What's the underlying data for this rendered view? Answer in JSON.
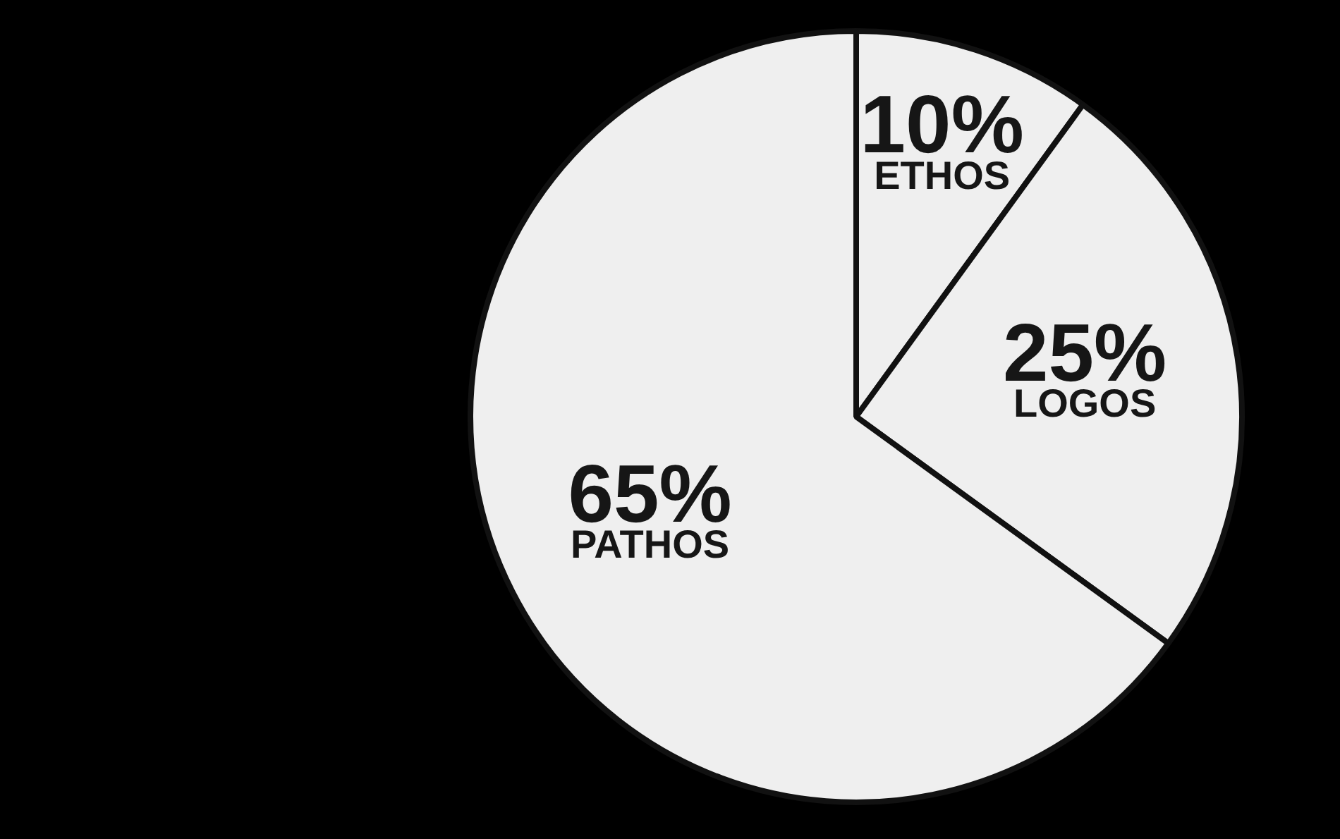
{
  "chart_data": {
    "type": "pie",
    "categories": [
      "ETHOS",
      "LOGOS",
      "PATHOS"
    ],
    "values": [
      10,
      25,
      65
    ],
    "value_labels": [
      "10%",
      "25%",
      "65%"
    ],
    "colors": [
      "#efefef",
      "#efefef",
      "#efefef"
    ],
    "legend": false
  }
}
